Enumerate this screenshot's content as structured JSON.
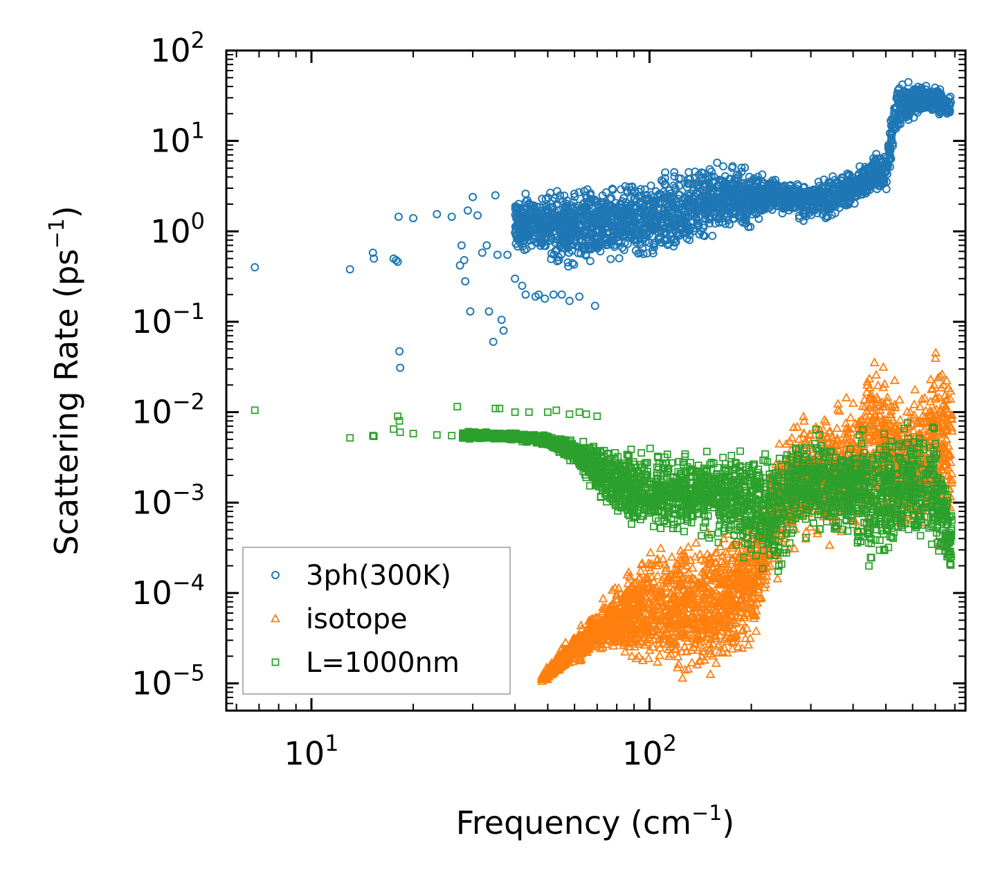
{
  "chart_data": {
    "type": "scatter",
    "xscale": "log",
    "yscale": "log",
    "xlim": [
      5.6,
      860
    ],
    "ylim": [
      5e-06,
      100
    ],
    "xlabel": "Frequency (cm",
    "xlabel_sup": "−1",
    "xlabel_end": ")",
    "ylabel": "Scattering Rate (ps",
    "ylabel_sup": "−1",
    "ylabel_end": ")",
    "x_ticks": [
      {
        "value": 10,
        "base": "10",
        "exp": "1"
      },
      {
        "value": 100,
        "base": "10",
        "exp": "2"
      }
    ],
    "y_ticks": [
      {
        "value": 100,
        "base": "10",
        "exp": "2"
      },
      {
        "value": 10,
        "base": "10",
        "exp": "1"
      },
      {
        "value": 1,
        "base": "10",
        "exp": "0"
      },
      {
        "value": 0.1,
        "base": "10",
        "exp": "−1"
      },
      {
        "value": 0.01,
        "base": "10",
        "exp": "−2"
      },
      {
        "value": 0.001,
        "base": "10",
        "exp": "−3"
      },
      {
        "value": 0.0001,
        "base": "10",
        "exp": "−4"
      },
      {
        "value": 1e-05,
        "base": "10",
        "exp": "−5"
      }
    ],
    "legend_position": "lower-left",
    "series": [
      {
        "name": "3ph(300K)",
        "marker": "circle",
        "color": "#1f77b4",
        "points": [
          [
            6.8,
            0.4
          ],
          [
            13.0,
            0.38
          ],
          [
            15.2,
            0.58
          ],
          [
            15.3,
            0.5
          ],
          [
            17.5,
            0.5
          ],
          [
            17.8,
            0.48
          ],
          [
            18.0,
            0.46
          ],
          [
            18.1,
            1.45
          ],
          [
            18.2,
            0.047
          ],
          [
            18.3,
            0.031
          ],
          [
            20.0,
            1.4
          ],
          [
            23.5,
            1.55
          ],
          [
            26.0,
            1.45
          ],
          [
            27.5,
            0.42
          ],
          [
            27.8,
            0.7
          ],
          [
            28.3,
            0.48
          ],
          [
            28.5,
            0.28
          ],
          [
            29.0,
            1.7
          ],
          [
            29.5,
            0.13
          ],
          [
            30.0,
            2.4
          ],
          [
            31.0,
            1.5
          ],
          [
            32.0,
            0.58
          ],
          [
            33.0,
            0.7
          ],
          [
            33.5,
            0.13
          ],
          [
            34.5,
            0.06
          ],
          [
            35.0,
            2.5
          ],
          [
            35.5,
            0.55
          ],
          [
            36.5,
            0.105
          ],
          [
            37.0,
            0.08
          ],
          [
            38.0,
            0.55
          ],
          [
            40.0,
            0.3
          ],
          [
            42.0,
            0.25
          ],
          [
            43.0,
            0.2
          ],
          [
            46.0,
            0.19
          ],
          [
            47.0,
            0.2
          ],
          [
            49.0,
            0.18
          ],
          [
            52.0,
            0.2
          ],
          [
            55.0,
            0.2
          ],
          [
            58.0,
            0.17
          ],
          [
            62.0,
            0.19
          ],
          [
            69.0,
            0.15
          ]
        ],
        "band": {
          "from": 40,
          "to": 780,
          "trend": [
            [
              40,
              0.5,
              3.0
            ],
            [
              60,
              0.3,
              4.0
            ],
            [
              80,
              0.4,
              4.0
            ],
            [
              100,
              0.4,
              4.5
            ],
            [
              120,
              0.4,
              6.0
            ],
            [
              150,
              0.7,
              7.0
            ],
            [
              200,
              1.0,
              5.5
            ],
            [
              230,
              1.5,
              4.5
            ],
            [
              250,
              1.5,
              3.5
            ],
            [
              280,
              1.2,
              4.0
            ],
            [
              340,
              1.2,
              4.5
            ],
            [
              420,
              2.0,
              6.0
            ],
            [
              460,
              2.5,
              8.0
            ],
            [
              500,
              2.5,
              9.0
            ],
            [
              540,
              12.0,
              50.0
            ],
            [
              640,
              18.0,
              50.0
            ],
            [
              780,
              17.0,
              35.0
            ]
          ]
        }
      },
      {
        "name": "isotope",
        "marker": "triangle",
        "color": "#ff7f0e",
        "points": [],
        "band": {
          "from": 48,
          "to": 785,
          "trend": [
            [
              48,
              1e-05,
              1.3e-05
            ],
            [
              60,
              1.5e-05,
              4e-05
            ],
            [
              75,
              2e-05,
              0.0001
            ],
            [
              90,
              1.2e-05,
              0.0003
            ],
            [
              110,
              1e-05,
              0.0005
            ],
            [
              150,
              1e-05,
              0.0006
            ],
            [
              200,
              2e-05,
              0.0008
            ],
            [
              230,
              0.0001,
              0.004
            ],
            [
              260,
              0.0002,
              0.012
            ],
            [
              300,
              0.0003,
              0.015
            ],
            [
              350,
              0.0003,
              0.015
            ],
            [
              400,
              0.0003,
              0.02
            ],
            [
              450,
              0.0003,
              0.08
            ],
            [
              520,
              0.0003,
              0.04
            ],
            [
              600,
              0.0003,
              0.02
            ],
            [
              700,
              0.0003,
              0.08
            ],
            [
              785,
              0.0003,
              0.05
            ]
          ]
        }
      },
      {
        "name": "L=1000nm",
        "marker": "square",
        "color": "#2ca02c",
        "points": [
          [
            6.8,
            0.0105
          ],
          [
            13.0,
            0.0052
          ],
          [
            15.2,
            0.0055
          ],
          [
            15.3,
            0.0054
          ],
          [
            17.5,
            0.0065
          ],
          [
            18.0,
            0.009
          ],
          [
            18.2,
            0.008
          ],
          [
            18.3,
            0.006
          ],
          [
            20.0,
            0.0058
          ],
          [
            23.5,
            0.0056
          ],
          [
            26.0,
            0.0055
          ],
          [
            27.0,
            0.0115
          ],
          [
            28.0,
            0.0052
          ],
          [
            30.0,
            0.006
          ],
          [
            33.0,
            0.0058
          ],
          [
            35.0,
            0.011
          ],
          [
            36.0,
            0.011
          ],
          [
            40.0,
            0.01
          ],
          [
            44.0,
            0.01
          ],
          [
            50.0,
            0.01
          ],
          [
            53.0,
            0.0105
          ],
          [
            58.0,
            0.0095
          ],
          [
            62.0,
            0.01
          ],
          [
            65.0,
            0.0095
          ],
          [
            70.0,
            0.009
          ]
        ],
        "band": {
          "from": 28,
          "to": 785,
          "trend": [
            [
              28,
              0.005,
              0.0062
            ],
            [
              40,
              0.0048,
              0.006
            ],
            [
              50,
              0.004,
              0.0058
            ],
            [
              60,
              0.0025,
              0.0055
            ],
            [
              70,
              0.001,
              0.005
            ],
            [
              90,
              0.0004,
              0.0045
            ],
            [
              120,
              0.0004,
              0.0045
            ],
            [
              160,
              0.0003,
              0.0045
            ],
            [
              200,
              0.0002,
              0.005
            ],
            [
              240,
              0.0001,
              0.005
            ],
            [
              260,
              0.0003,
              0.008
            ],
            [
              300,
              0.0004,
              0.008
            ],
            [
              350,
              0.0003,
              0.0075
            ],
            [
              400,
              0.0003,
              0.009
            ],
            [
              450,
              0.0001,
              0.009
            ],
            [
              520,
              0.0002,
              0.008
            ],
            [
              600,
              0.0003,
              0.01
            ],
            [
              700,
              0.0002,
              0.01
            ],
            [
              785,
              0.0001,
              0.001
            ]
          ]
        }
      }
    ]
  }
}
